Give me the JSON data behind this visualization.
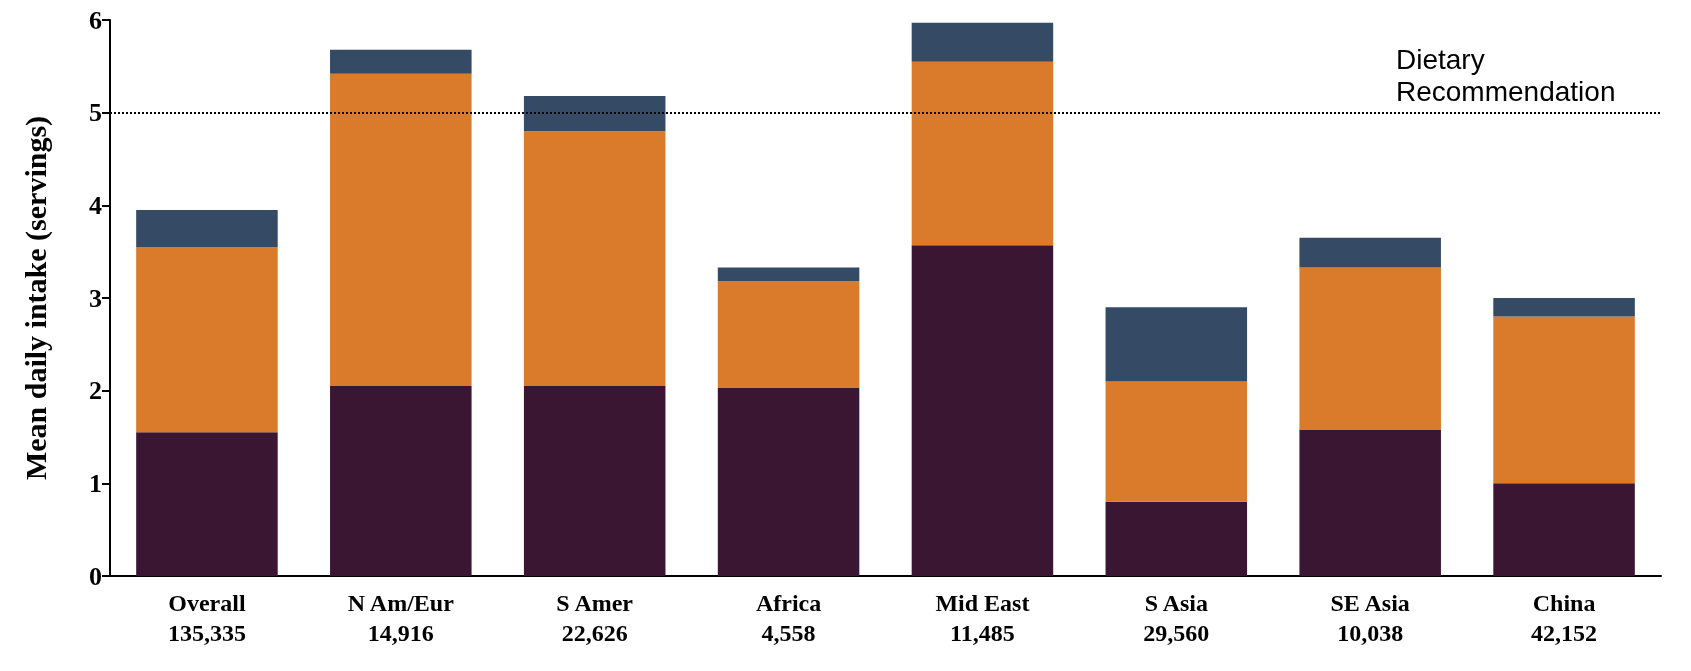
{
  "chart_data": {
    "type": "bar",
    "stacked": true,
    "ylabel": "Mean daily intake (servings)",
    "categories": [
      "Overall\n135,335",
      "N Am/Eur\n14,916",
      "S Amer\n22,626",
      "Africa\n4,558",
      "Mid East\n11,485",
      "S Asia\n29,560",
      "SE Asia\n10,038",
      "China\n42,152"
    ],
    "series": [
      {
        "color": "#3a1632",
        "values": [
          1.55,
          2.05,
          2.05,
          2.03,
          3.57,
          0.8,
          1.58,
          1.0
        ]
      },
      {
        "color": "#d97b2a",
        "values": [
          2.0,
          3.37,
          2.75,
          1.15,
          1.98,
          1.3,
          1.75,
          1.8
        ]
      },
      {
        "color": "#344a65",
        "values": [
          0.4,
          0.26,
          0.38,
          0.15,
          0.42,
          0.8,
          0.32,
          0.2
        ]
      }
    ],
    "ylim": [
      0,
      6
    ],
    "yticks": [
      0,
      1,
      2,
      3,
      4,
      5,
      6
    ],
    "grid": false,
    "ref_lines": [
      {
        "axis": "y",
        "value": 5,
        "label": "Dietary\nRecommendation",
        "color": "#000000",
        "line_style": "dotted"
      }
    ]
  }
}
